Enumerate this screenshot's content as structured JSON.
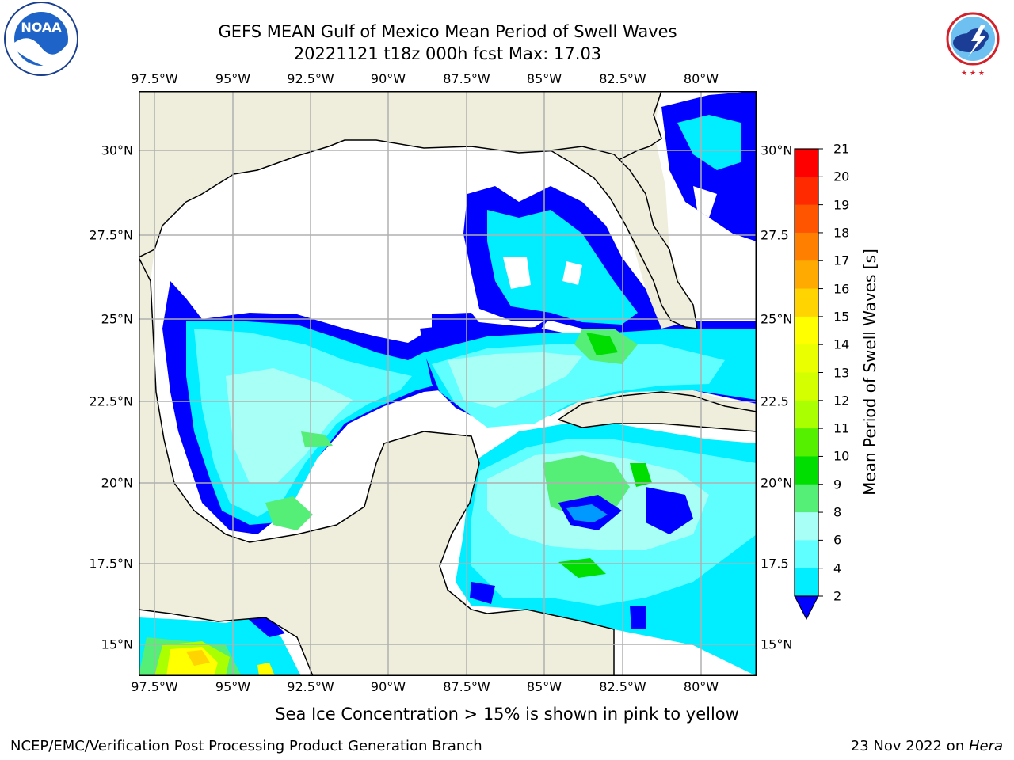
{
  "header": {
    "title_line1": "GEFS MEAN Gulf of Mexico Mean Period of Swell Waves",
    "title_line2": "20221121 t18z 000h fcst   Max: 17.03"
  },
  "logos": {
    "left": {
      "name": "noaa-logo",
      "text": "NOAA",
      "ring_text": "NATIONAL OCEANIC AND ATMOSPHERIC ADMINISTRATION · U.S. DEPARTMENT OF COMMERCE"
    },
    "right": {
      "name": "nws-logo",
      "ring_text": "NATIONAL WEATHER SERVICE"
    }
  },
  "map": {
    "lon_ticks": [
      "97.5°W",
      "95°W",
      "92.5°W",
      "90°W",
      "87.5°W",
      "85°W",
      "82.5°W",
      "80°W"
    ],
    "lat_ticks_left": [
      "30°N",
      "27.5°N",
      "25°N",
      "22.5°N",
      "20°N",
      "17.5°N",
      "15°N"
    ],
    "lat_ticks_right": [
      "30°N",
      "27.5",
      "25°N",
      "22.5",
      "20°N",
      "17.5",
      "15°N"
    ],
    "colors": {
      "land": "#efeedd",
      "ocean_nodata": "#ffffff",
      "grid": "#b0b0b0",
      "coast": "#000000"
    }
  },
  "colorbar": {
    "label": "Mean Period of Swell Waves [s]",
    "ticks": [
      "21",
      "20",
      "19",
      "18",
      "17",
      "16",
      "15",
      "14",
      "13",
      "12",
      "11",
      "10",
      "9",
      "8",
      "6",
      "4",
      "2"
    ],
    "colors": [
      "#ff0000",
      "#ff2a00",
      "#ff5500",
      "#ff7f00",
      "#ffaa00",
      "#ffd400",
      "#ffff00",
      "#eaff00",
      "#d4ff00",
      "#aaff00",
      "#55f000",
      "#00dd00",
      "#55ee77",
      "#a8fff5",
      "#60ffff",
      "#00eeff",
      "#0099ff",
      "#0000ff"
    ]
  },
  "footer": {
    "note": "Sea Ice Concentration > 15% is shown in pink to yellow",
    "left": "NCEP/EMC/Verification Post Processing Product Generation Branch",
    "right_prefix": "23 Nov 2022 on ",
    "right_host": "Hera"
  }
}
